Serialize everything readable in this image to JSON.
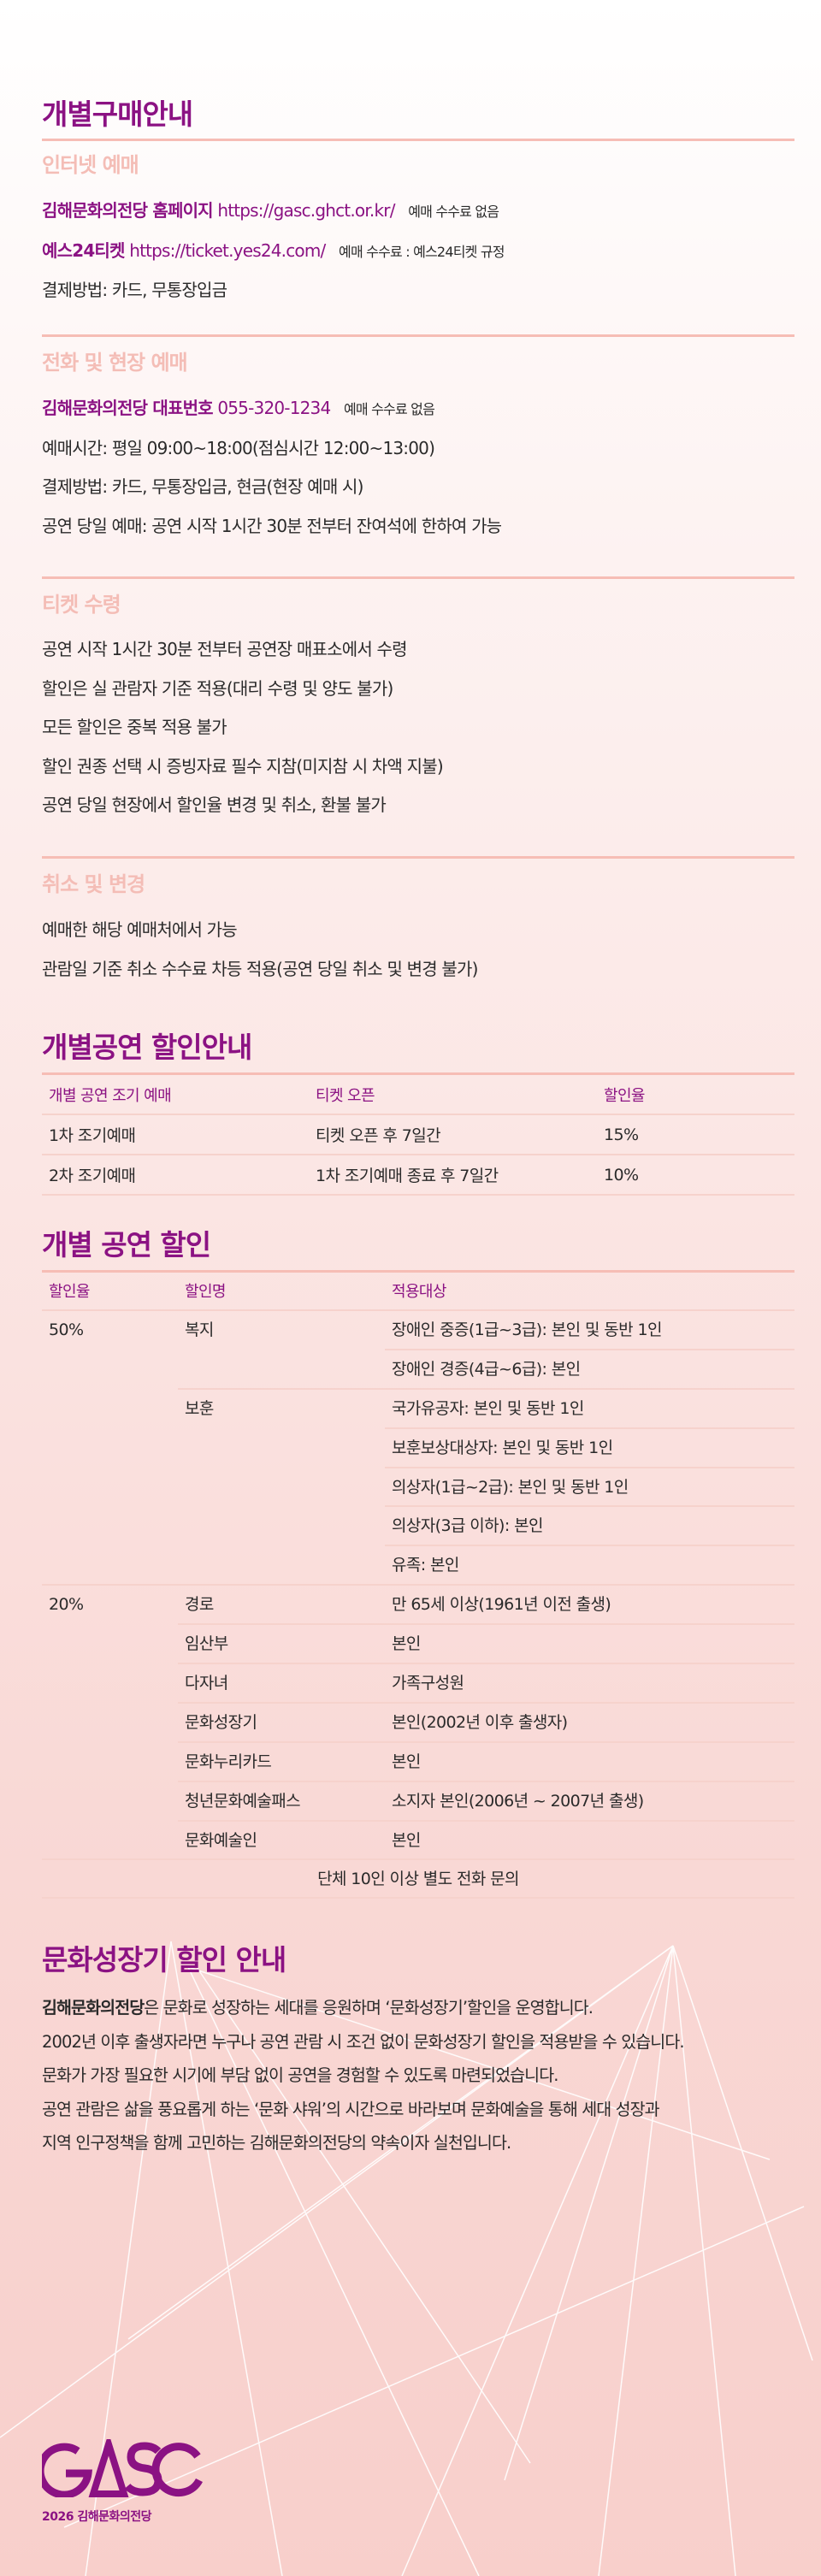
{
  "colors": {
    "accent": "#8b1283",
    "subheading": "#f4bdb6",
    "divider": "#f6bdb5"
  },
  "purchase": {
    "title": "개별구매안내",
    "internet": {
      "heading": "인터넷 예매",
      "lines": [
        {
          "label": "김해문화의전당 홈페이지",
          "url": "https://gasc.ghct.or.kr/",
          "note": "예매 수수료 없음"
        },
        {
          "label": "예스24티켓",
          "url": "https://ticket.yes24.com/",
          "note": "예매 수수료 : 예스24티켓 규정"
        }
      ],
      "payment": "결제방법: 카드, 무통장입금"
    },
    "phone": {
      "heading": "전화 및 현장 예매",
      "label": "김해문화의전당 대표번호",
      "number": "055-320-1234",
      "note": "예매 수수료 없음",
      "lines": [
        "예매시간: 평일 09:00~18:00(점심시간 12:00~13:00)",
        "결제방법: 카드, 무통장입금, 현금(현장 예매 시)",
        "공연 당일 예매: 공연 시작 1시간 30분 전부터 잔여석에 한하여 가능"
      ]
    },
    "ticket": {
      "heading": "티켓 수령",
      "lines": [
        "공연 시작 1시간 30분 전부터 공연장 매표소에서 수령",
        "할인은 실 관람자 기준 적용(대리 수령 및 양도 불가)",
        "모든 할인은 중복 적용 불가",
        "할인 권종 선택 시 증빙자료 필수 지참(미지참 시 차액 지불)",
        "공연 당일 현장에서 할인율 변경 및 취소, 환불 불가"
      ]
    },
    "cancel": {
      "heading": "취소 및 변경",
      "lines": [
        "예매한 해당 예매처에서 가능",
        "관람일 기준 취소 수수료 차등 적용(공연 당일 취소 및 변경 불가)"
      ]
    }
  },
  "early": {
    "title": "개별공연 할인안내",
    "headers": [
      "개별 공연 조기 예매",
      "티켓 오픈",
      "할인율"
    ],
    "rows": [
      [
        "1차 조기예매",
        "티켓 오픈 후 7일간",
        "15%"
      ],
      [
        "2차 조기예매",
        "1차 조기예매 종료 후 7일간",
        "10%"
      ]
    ]
  },
  "discount": {
    "title": "개별 공연 할인",
    "headers": [
      "할인율",
      "할인명",
      "적용대상"
    ],
    "rows": [
      [
        "50%",
        "복지",
        "장애인 중증(1급~3급): 본인 및 동반 1인"
      ],
      [
        "",
        "",
        "장애인 경증(4급~6급): 본인"
      ],
      [
        "",
        "보훈",
        "국가유공자: 본인 및 동반 1인"
      ],
      [
        "",
        "",
        "보훈보상대상자: 본인 및 동반 1인"
      ],
      [
        "",
        "",
        "의상자(1급~2급): 본인 및 동반 1인"
      ],
      [
        "",
        "",
        "의상자(3급 이하): 본인"
      ],
      [
        "",
        "",
        "유족: 본인"
      ],
      [
        "20%",
        "경로",
        "만 65세 이상(1961년 이전 출생)"
      ],
      [
        "",
        "임산부",
        "본인"
      ],
      [
        "",
        "다자녀",
        "가족구성원"
      ],
      [
        "",
        "문화성장기",
        "본인(2002년 이후 출생자)"
      ],
      [
        "",
        "문화누리카드",
        "본인"
      ],
      [
        "",
        "청년문화예술패스",
        "소지자 본인(2006년 ~ 2007년 출생)"
      ],
      [
        "",
        "문화예술인",
        "본인"
      ]
    ],
    "footer": "단체 10인 이상 별도 전화 문의"
  },
  "youth": {
    "title": "문화성장기 할인 안내",
    "lead_bold": "김해문화의전당",
    "lead_rest": "은 문화로 성장하는 세대를 응원하며 ‘문화성장기’할인을 운영합니다.",
    "lines": [
      "2002년 이후 출생자라면 누구나 공연 관람 시 조건 없이 문화성장기 할인을 적용받을 수 있습니다.",
      "문화가 가장 필요한 시기에 부담 없이 공연을 경험할 수 있도록 마련되었습니다.",
      "공연 관람은 삶을 풍요롭게 하는 ‘문화 샤워’의 시간으로 바라보며 문화예술을 통해 세대 성장과",
      "지역 인구정책을 함께 고민하는 김해문화의전당의 약속이자 실천입니다."
    ]
  },
  "logo": {
    "mark": "GASC",
    "subtitle": "2026 김해문화의전당"
  }
}
